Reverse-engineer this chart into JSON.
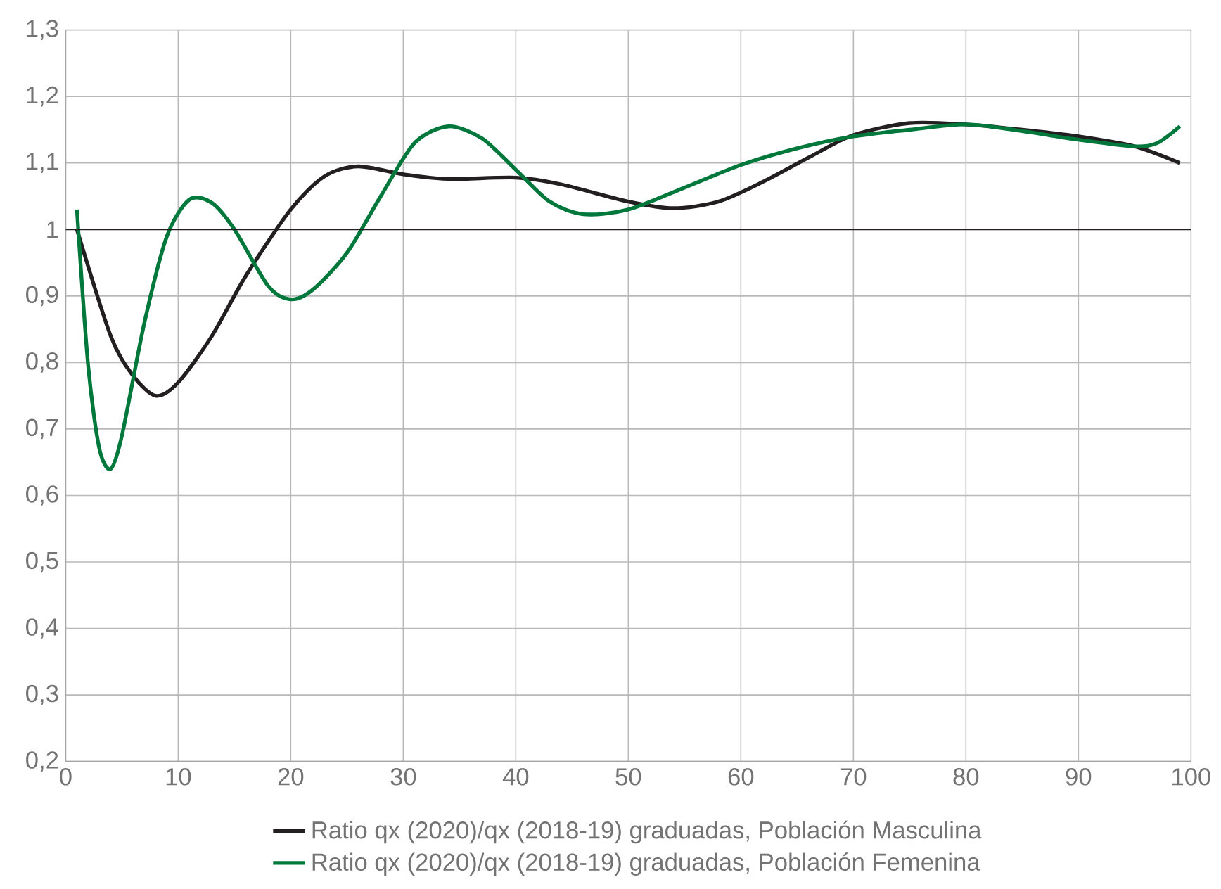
{
  "chart_data": {
    "type": "line",
    "series": [
      {
        "name": "Ratio qx (2020)/qx (2018-19) graduadas, Población Masculina",
        "color": "#231f20",
        "x": [
          1,
          4,
          6,
          8,
          10,
          13,
          16,
          20,
          23,
          26,
          30,
          34,
          40,
          44,
          50,
          54,
          58,
          62,
          66,
          70,
          75,
          80,
          85,
          90,
          95,
          99
        ],
        "values": [
          1.0,
          0.84,
          0.78,
          0.75,
          0.77,
          0.84,
          0.93,
          1.03,
          1.08,
          1.095,
          1.083,
          1.076,
          1.078,
          1.068,
          1.042,
          1.032,
          1.042,
          1.072,
          1.108,
          1.142,
          1.16,
          1.158,
          1.15,
          1.14,
          1.125,
          1.1
        ]
      },
      {
        "name": "Ratio qx (2020)/qx (2018-19) graduadas, Población Femenina",
        "color": "#00783c",
        "x": [
          1,
          2,
          3,
          4,
          5,
          7,
          9,
          11,
          13,
          15,
          18,
          20,
          22,
          25,
          28,
          31,
          34,
          37,
          40,
          43,
          46,
          50,
          55,
          60,
          65,
          70,
          75,
          80,
          85,
          90,
          95,
          97,
          99
        ],
        "values": [
          1.03,
          0.795,
          0.67,
          0.64,
          0.69,
          0.86,
          0.99,
          1.045,
          1.04,
          1.0,
          0.915,
          0.895,
          0.91,
          0.965,
          1.05,
          1.13,
          1.155,
          1.137,
          1.09,
          1.042,
          1.023,
          1.03,
          1.063,
          1.097,
          1.122,
          1.14,
          1.15,
          1.158,
          1.148,
          1.135,
          1.125,
          1.13,
          1.155
        ]
      }
    ],
    "xlim": [
      0,
      100
    ],
    "xticks": [
      0,
      10,
      20,
      30,
      40,
      50,
      60,
      70,
      80,
      90,
      100
    ],
    "ylim": [
      0.2,
      1.3
    ],
    "yticks": [
      {
        "value": 0.2,
        "label": "0,2"
      },
      {
        "value": 0.3,
        "label": "0,3"
      },
      {
        "value": 0.4,
        "label": "0,4"
      },
      {
        "value": 0.5,
        "label": "0,5"
      },
      {
        "value": 0.6,
        "label": "0,6"
      },
      {
        "value": 0.7,
        "label": "0,7"
      },
      {
        "value": 0.8,
        "label": "0,8"
      },
      {
        "value": 0.9,
        "label": "0,9"
      },
      {
        "value": 1,
        "label": "1"
      },
      {
        "value": 1.1,
        "label": "1,1"
      },
      {
        "value": 1.2,
        "label": "1,2"
      },
      {
        "value": 1.3,
        "label": "1,3"
      }
    ],
    "ref_lines": [
      {
        "axis": "y",
        "value": 1,
        "color": "#231f20"
      }
    ],
    "grid": true,
    "legend": "bottom",
    "marker": "none",
    "line_style": "solid"
  }
}
